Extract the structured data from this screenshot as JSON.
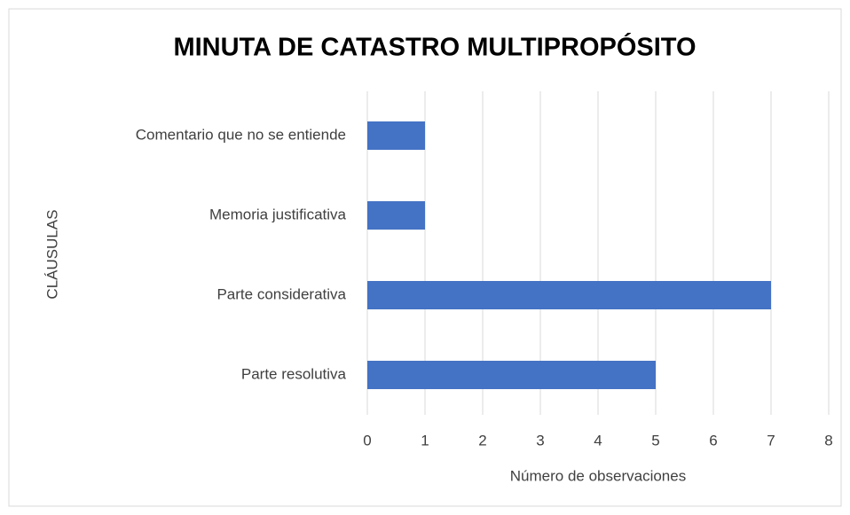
{
  "chart_data": {
    "type": "bar",
    "orientation": "horizontal",
    "title": "MINUTA DE CATASTRO MULTIPROPÓSITO",
    "x_label": "Número de observaciones",
    "y_label": "CLÁUSULAS",
    "categories": [
      "Comentario que no se entiende",
      "Memoria justificativa",
      "Parte considerativa",
      "Parte resolutiva"
    ],
    "values": [
      1,
      1,
      7,
      5
    ],
    "color": "#4472c4",
    "xlim": [
      0,
      8
    ],
    "xticks": [
      0,
      1,
      2,
      3,
      4,
      5,
      6,
      7,
      8
    ],
    "grid": true
  }
}
